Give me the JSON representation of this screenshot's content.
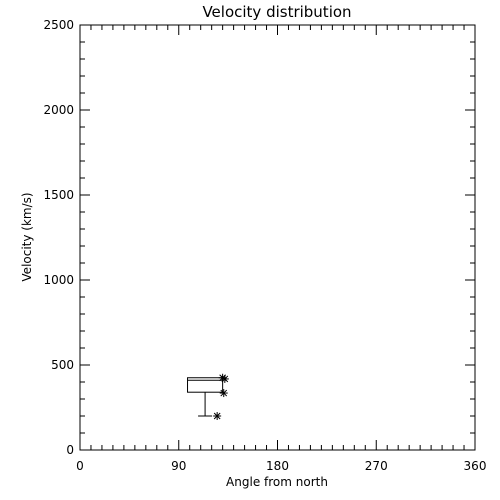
{
  "chart_data": {
    "type": "box",
    "title": "Velocity distribution",
    "xlabel": "Angle from north",
    "ylabel": "Velocity (km/s)",
    "xlim": [
      0,
      360
    ],
    "ylim": [
      0,
      2500
    ],
    "xticks": [
      0,
      90,
      180,
      270,
      360
    ],
    "yticks": [
      0,
      500,
      1000,
      1500,
      2000,
      2500
    ],
    "x_minor_step": 10,
    "y_minor_step": 100,
    "grid": false,
    "box": {
      "x_left": 98,
      "x_right": 130,
      "x_median": 114,
      "q1": 340,
      "median": 410,
      "q3": 425,
      "whisker_low": 200,
      "whisker_high": 425
    },
    "points": [
      {
        "x": 130,
        "y": 425
      },
      {
        "x": 132,
        "y": 418
      },
      {
        "x": 131,
        "y": 335
      },
      {
        "x": 125,
        "y": 200
      }
    ]
  }
}
